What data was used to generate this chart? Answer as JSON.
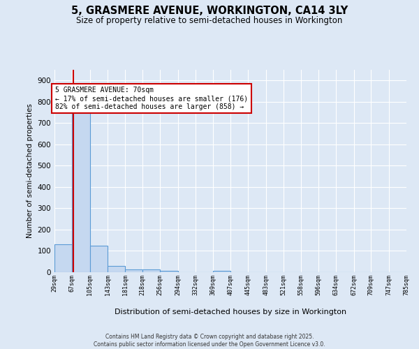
{
  "title": "5, GRASMERE AVENUE, WORKINGTON, CA14 3LY",
  "subtitle": "Size of property relative to semi-detached houses in Workington",
  "xlabel": "Distribution of semi-detached houses by size in Workington",
  "ylabel": "Number of semi-detached properties",
  "bin_edges": [
    29,
    67,
    105,
    143,
    181,
    218,
    256,
    294,
    332,
    369,
    407,
    445,
    483,
    521,
    558,
    596,
    634,
    672,
    709,
    747,
    785
  ],
  "bar_heights": [
    130,
    750,
    125,
    28,
    13,
    13,
    8,
    0,
    0,
    8,
    0,
    0,
    0,
    0,
    0,
    0,
    0,
    0,
    0,
    0
  ],
  "bar_color": "#c5d8f0",
  "bar_edge_color": "#5b9bd5",
  "property_line_x": 70,
  "property_line_color": "#cc0000",
  "annotation_text": "5 GRASMERE AVENUE: 70sqm\n← 17% of semi-detached houses are smaller (176)\n82% of semi-detached houses are larger (858) →",
  "annotation_box_color": "#ffffff",
  "annotation_box_edge_color": "#cc0000",
  "ylim": [
    0,
    950
  ],
  "yticks": [
    0,
    100,
    200,
    300,
    400,
    500,
    600,
    700,
    800,
    900
  ],
  "background_color": "#dde8f5",
  "grid_color": "#ffffff",
  "footer_line1": "Contains HM Land Registry data © Crown copyright and database right 2025.",
  "footer_line2": "Contains public sector information licensed under the Open Government Licence v3.0."
}
